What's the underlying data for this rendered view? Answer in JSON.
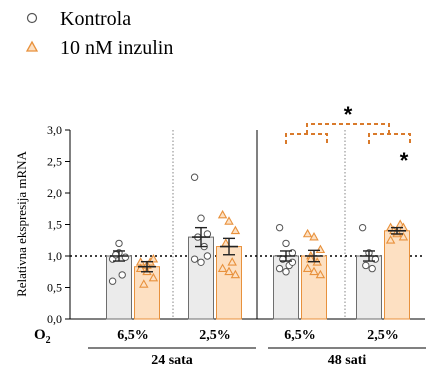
{
  "chart_data": {
    "type": "bar",
    "ylabel": "Relativna ekspresija mRNA",
    "ylim": [
      0,
      3
    ],
    "yticks": [
      "0,0",
      "0,5",
      "1,0",
      "1,5",
      "2,0",
      "2,5",
      "3,0"
    ],
    "yticks_values": [
      0,
      0.5,
      1,
      1.5,
      2,
      2.5,
      3
    ],
    "reference_line": 1.0,
    "x_axis_prefix": "O",
    "x_axis_prefix_sub": "2",
    "groups": [
      {
        "label": "24 sata",
        "conditions": [
          {
            "label": "6,5%",
            "kontrola": {
              "mean": 1.0,
              "sem": 0.08,
              "points": [
                0.95,
                1.05,
                0.98,
                1.02,
                0.7,
                0.6,
                1.2
              ]
            },
            "inzulin": {
              "mean": 0.83,
              "sem": 0.08,
              "points": [
                0.9,
                0.75,
                0.65,
                0.55,
                0.9,
                0.8,
                0.85,
                0.95
              ]
            }
          },
          {
            "label": "2,5%",
            "kontrola": {
              "mean": 1.3,
              "sem": 0.15,
              "points": [
                2.25,
                1.6,
                1.35,
                1.3,
                1.15,
                0.95,
                0.9,
                1.0
              ]
            },
            "inzulin": {
              "mean": 1.15,
              "sem": 0.13,
              "points": [
                1.65,
                1.55,
                1.4,
                1.2,
                0.9,
                0.8,
                0.75,
                0.7
              ]
            }
          }
        ]
      },
      {
        "label": "48 sati",
        "conditions": [
          {
            "label": "6,5%",
            "kontrola": {
              "mean": 1.0,
              "sem": 0.08,
              "points": [
                1.45,
                1.2,
                1.05,
                0.95,
                0.85,
                0.8,
                0.75,
                0.9
              ]
            },
            "inzulin": {
              "mean": 1.0,
              "sem": 0.09,
              "points": [
                1.35,
                1.3,
                1.1,
                1.0,
                0.9,
                0.8,
                0.75,
                0.7,
                0.95
              ]
            }
          },
          {
            "label": "2,5%",
            "kontrola": {
              "mean": 1.0,
              "sem": 0.08,
              "points": [
                1.45,
                1.05,
                0.95,
                0.85,
                0.8
              ]
            },
            "inzulin": {
              "mean": 1.4,
              "sem": 0.05,
              "points": [
                1.45,
                1.35,
                1.3,
                1.4,
                1.5,
                1.25,
                1.38,
                1.45
              ]
            }
          }
        ]
      }
    ],
    "series": [
      {
        "name": "Kontrola",
        "marker": "circle",
        "bar_color": "#ebebeb",
        "edge_color": "#6e6e6e"
      },
      {
        "name": "10 nM inzulin",
        "marker": "triangle",
        "bar_color": "#fde0c2",
        "edge_color": "#e8913c"
      }
    ],
    "significance": [
      "*",
      "*"
    ],
    "legend_position": "top-left",
    "bracket_color": "#d97a2b"
  }
}
